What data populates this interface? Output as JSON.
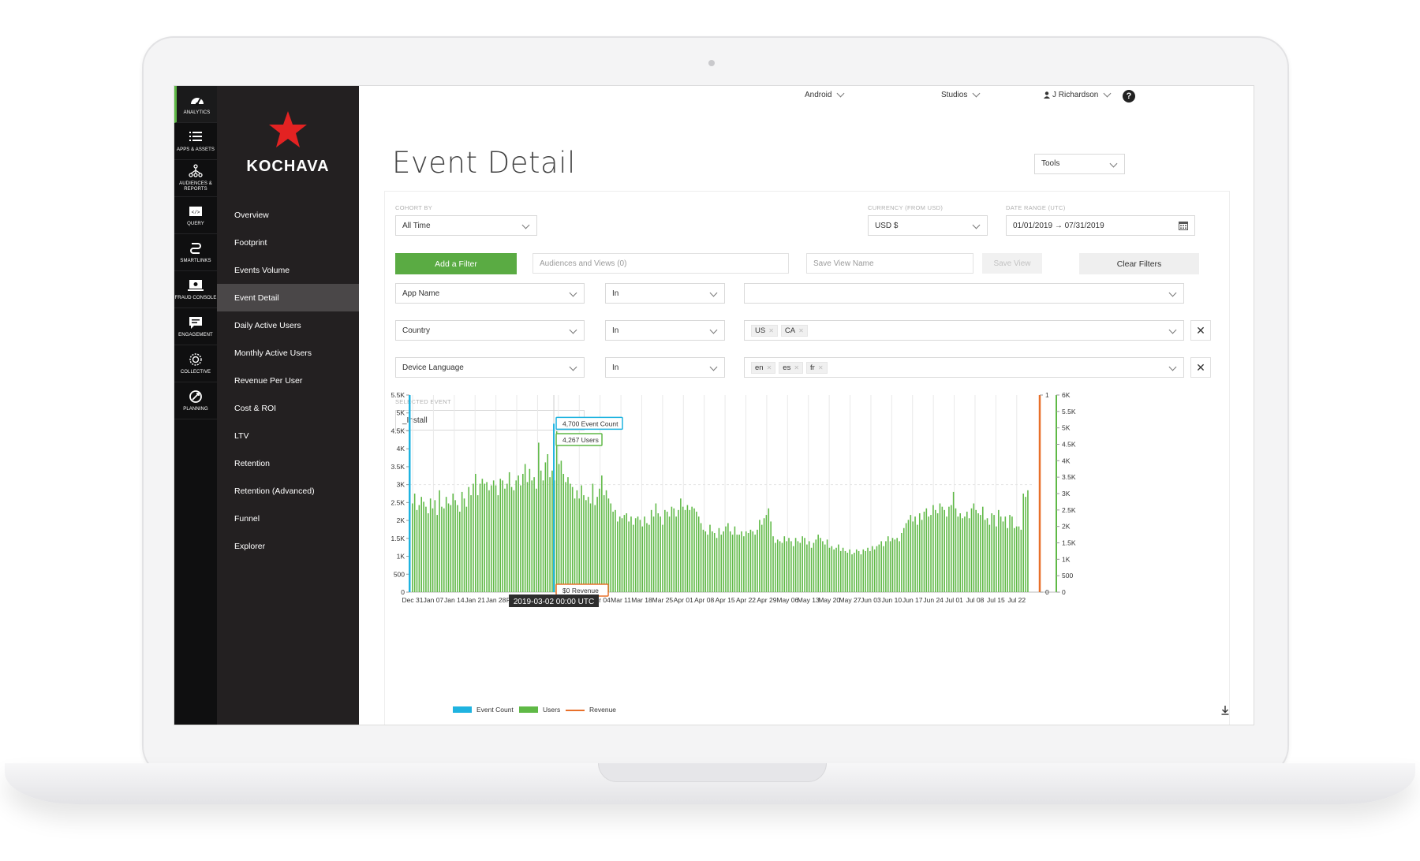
{
  "rail": [
    {
      "icon": "speedometer-icon",
      "label": "ANALYTICS",
      "active": true
    },
    {
      "icon": "list-icon",
      "label": "APPS & ASSETS"
    },
    {
      "icon": "hierarchy-icon",
      "label": "AUDIENCES & REPORTS"
    },
    {
      "icon": "code-icon",
      "label": "QUERY"
    },
    {
      "icon": "smartlink-icon",
      "label": "SMARTLINKS"
    },
    {
      "icon": "fraud-icon",
      "label": "FRAUD CONSOLE"
    },
    {
      "icon": "chat-icon",
      "label": "ENGAGEMENT"
    },
    {
      "icon": "collective-icon",
      "label": "COLLECTIVE"
    },
    {
      "icon": "planning-icon",
      "label": "PLANNING"
    }
  ],
  "brand": {
    "name": "KOCHAVA",
    "accent": "#e32222"
  },
  "nav": [
    {
      "label": "Overview"
    },
    {
      "label": "Footprint"
    },
    {
      "label": "Events Volume"
    },
    {
      "label": "Event Detail",
      "active": true
    },
    {
      "label": "Daily Active Users"
    },
    {
      "label": "Monthly Active Users"
    },
    {
      "label": "Revenue Per User"
    },
    {
      "label": "Cost & ROI"
    },
    {
      "label": "LTV"
    },
    {
      "label": "Retention"
    },
    {
      "label": "Retention (Advanced)"
    },
    {
      "label": "Funnel"
    },
    {
      "label": "Explorer"
    }
  ],
  "topbar": {
    "platform": "Android",
    "studios": "Studios",
    "user": "J Richardson",
    "help": "?"
  },
  "page": {
    "title": "Event Detail",
    "tools": "Tools"
  },
  "filters": {
    "cohort_label": "COHORT BY",
    "cohort_value": "All Time",
    "currency_label": "CURRENCY (FROM USD)",
    "currency_value": "USD $",
    "date_label": "DATE RANGE (UTC)",
    "date_value": "01/01/2019 → 07/31/2019",
    "add_filter": "Add a Filter",
    "audiences_placeholder": "Audiences and Views (0)",
    "save_view_placeholder": "Save View Name",
    "save_view": "Save View",
    "clear_filters": "Clear Filters",
    "rows": [
      {
        "field": "App Name",
        "op": "In",
        "tags": []
      },
      {
        "field": "Country",
        "op": "In",
        "tags": [
          "US",
          "CA"
        ]
      },
      {
        "field": "Device Language",
        "op": "In",
        "tags": [
          "en",
          "es",
          "fr"
        ]
      }
    ],
    "selected_event_label": "SELECTED EVENT",
    "selected_event": "_Install"
  },
  "colors": {
    "event_count": "#1fb3e0",
    "users": "#5fb946",
    "revenue": "#e8702a",
    "green_button": "#5aab43"
  },
  "chart_data": {
    "type": "bar",
    "x_tick_labels": [
      "Dec 31",
      "Jan 07",
      "Jan 14",
      "Jan 21",
      "Jan 28",
      "Feb 04",
      "Feb 11",
      "Feb 18",
      "Feb 25",
      "Mar 04",
      "Mar 11",
      "Mar 18",
      "Mar 25",
      "Apr 01",
      "Apr 08",
      "Apr 15",
      "Apr 22",
      "Apr 29",
      "May 06",
      "May 13",
      "May 20",
      "May 27",
      "Jun 03",
      "Jun 10",
      "Jun 17",
      "Jun 24",
      "Jul 01",
      "Jul 08",
      "Jul 15",
      "Jul 22"
    ],
    "y_left_ticks": [
      "0",
      "500",
      "1K",
      "1.5K",
      "2K",
      "2.5K",
      "3K",
      "3.5K",
      "4K",
      "4.5K",
      "5K",
      "5.5K"
    ],
    "y_left_range": [
      0,
      5500
    ],
    "y_revenue_ticks": [
      "0",
      "1"
    ],
    "y_revenue_range": [
      0,
      1
    ],
    "y_right_ticks": [
      "0",
      "500",
      "1K",
      "1.5K",
      "2K",
      "2.5K",
      "3K",
      "3.5K",
      "4K",
      "4.5K",
      "5K",
      "5.5K",
      "6K"
    ],
    "y_right_range": [
      0,
      6000
    ],
    "series": [
      {
        "name": "Event Count",
        "color": "#1fb3e0"
      },
      {
        "name": "Users",
        "color": "#5fb946",
        "values": [
          2700,
          3000,
          2500,
          2650,
          2900,
          2750,
          2600,
          2400,
          2850,
          2550,
          2800,
          2350,
          3100,
          2600,
          2550,
          2900,
          2700,
          2650,
          3000,
          2800,
          2650,
          2450,
          3050,
          2850,
          2600,
          3200,
          2950,
          3300,
          3600,
          2950,
          3300,
          3450,
          3300,
          3350,
          3100,
          3250,
          3400,
          3250,
          2950,
          3450,
          3400,
          3150,
          3300,
          3650,
          3200,
          3100,
          3400,
          3550,
          3250,
          3600,
          3900,
          3350,
          3750,
          3400,
          3500,
          3150,
          4550,
          3700,
          3400,
          3950,
          4200,
          3500,
          3700,
          3400,
          4900,
          3900,
          4000,
          3600,
          3350,
          3500,
          3300,
          3200,
          2850,
          3100,
          2850,
          3250,
          2950,
          2800,
          2900,
          2700,
          3300,
          2650,
          2900,
          3150,
          3550,
          2950,
          3100,
          2850,
          2700,
          2450,
          2500,
          2150,
          2300,
          2250,
          2350,
          2400,
          2150,
          2300,
          2050,
          2250,
          2300,
          2200,
          2000,
          2300,
          2100,
          2050,
          2500,
          2300,
          2700,
          2400,
          2300,
          2050,
          2500,
          2450,
          2300,
          2600,
          2550,
          2300,
          2500,
          2850,
          2600,
          2500,
          2650,
          2500,
          2600,
          2550,
          2450,
          2300,
          2100,
          1900,
          1850,
          1750,
          2050,
          1850,
          1800,
          1650,
          1950,
          1750,
          1850,
          2000,
          2100,
          1850,
          1750,
          2000,
          1750,
          1750,
          1850,
          1700,
          1850,
          1800,
          1900,
          1850,
          1750,
          1900,
          2200,
          2050,
          2250,
          2350,
          2550,
          2150,
          1700,
          1500,
          1600,
          1550,
          1500,
          1700,
          1550,
          1650,
          1550,
          1400,
          1650,
          1550,
          1500,
          1700,
          1650,
          1450,
          1550,
          1350,
          1500,
          1600,
          1750,
          1650,
          1550,
          1450,
          1600,
          1350,
          1400,
          1300,
          1350,
          1450,
          1250,
          1350,
          1250,
          1200,
          1300,
          1150,
          1200,
          1300,
          1250,
          1150,
          1300,
          1250,
          1350,
          1250,
          1400,
          1300,
          1400,
          1450,
          1550,
          1400,
          1550,
          1700,
          1550,
          1650,
          1600,
          1650,
          1550,
          1800,
          1950,
          2100,
          2200,
          2350,
          2150,
          2300,
          2050,
          2400,
          2200,
          2450,
          2550,
          2300,
          2350,
          2650,
          2500,
          2400,
          2700,
          2600,
          2500,
          2300,
          2600,
          2650,
          3050,
          2550,
          2300,
          2400,
          2250,
          2300,
          2450,
          2250,
          2550,
          2700,
          2500,
          2400,
          2350,
          2600,
          2200,
          2250,
          2050,
          2400,
          2350,
          2000,
          2500,
          2300,
          2150,
          2300,
          1950,
          2350,
          2300,
          1950,
          2000,
          2000,
          1900,
          3000,
          2900,
          3100
        ]
      },
      {
        "name": "Revenue",
        "color": "#e8702a"
      }
    ],
    "tooltips": {
      "event_count": "4,700 Event Count",
      "users": "4,267 Users",
      "revenue": "$0 Revenue",
      "date": "2019-03-02 00:00 UTC"
    },
    "legend_position": "bottom-left",
    "grid": "vertical"
  }
}
